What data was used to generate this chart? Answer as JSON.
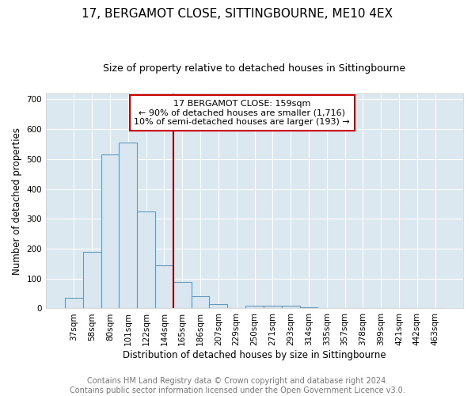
{
  "title": "17, BERGAMOT CLOSE, SITTINGBOURNE, ME10 4EX",
  "subtitle": "Size of property relative to detached houses in Sittingbourne",
  "xlabel": "Distribution of detached houses by size in Sittingbourne",
  "ylabel": "Number of detached properties",
  "bin_labels": [
    "37sqm",
    "58sqm",
    "80sqm",
    "101sqm",
    "122sqm",
    "144sqm",
    "165sqm",
    "186sqm",
    "207sqm",
    "229sqm",
    "250sqm",
    "271sqm",
    "293sqm",
    "314sqm",
    "335sqm",
    "357sqm",
    "378sqm",
    "399sqm",
    "421sqm",
    "442sqm",
    "463sqm"
  ],
  "bar_heights": [
    35,
    190,
    515,
    555,
    325,
    145,
    88,
    42,
    15,
    0,
    8,
    10,
    10,
    5,
    0,
    0,
    0,
    0,
    0,
    0,
    0
  ],
  "bar_color": "#dae6f0",
  "bar_edge_color": "#6699bb",
  "vline_x": 6.0,
  "vline_color": "#990000",
  "annotation_text": "17 BERGAMOT CLOSE: 159sqm\n← 90% of detached houses are smaller (1,716)\n10% of semi-detached houses are larger (193) →",
  "annotation_box_color": "white",
  "annotation_box_edge": "#cc0000",
  "footer_text": "Contains HM Land Registry data © Crown copyright and database right 2024.\nContains public sector information licensed under the Open Government Licence v3.0.",
  "fig_bg_color": "#ffffff",
  "plot_bg_color": "#dce8f0",
  "grid_color": "#ffffff",
  "ylim": [
    0,
    720
  ],
  "yticks": [
    0,
    100,
    200,
    300,
    400,
    500,
    600,
    700
  ],
  "title_fontsize": 11,
  "subtitle_fontsize": 9,
  "axis_label_fontsize": 8.5,
  "tick_fontsize": 7.5,
  "footer_fontsize": 7
}
